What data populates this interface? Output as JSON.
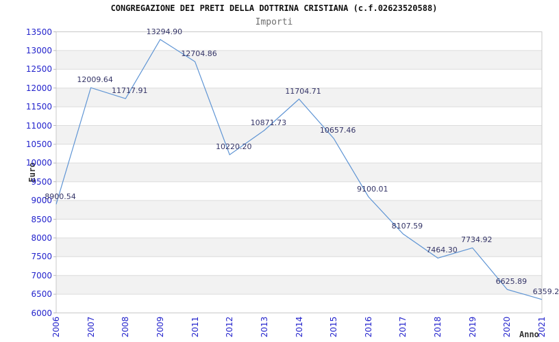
{
  "header": {
    "title": "CONGREGAZIONE DEI PRETI DELLA DOTTRINA CRISTIANA (c.f.02623520588)",
    "subtitle": "Importi"
  },
  "axes": {
    "y_title": "Euro",
    "x_title": "Anno"
  },
  "colors": {
    "line": "#5e94d4",
    "band": "#f2f2f2",
    "grid": "#dcdcdc",
    "border": "#c8c8c8",
    "tick_mark": "#bbbbbb",
    "tick_label": "#2222cc",
    "point_label": "#333366",
    "title": "#111111",
    "subtitle": "#6e6e6e",
    "axis_title": "#333333",
    "background": "#ffffff"
  },
  "chart_data": {
    "type": "line",
    "title": "CONGREGAZIONE DEI PRETI DELLA DOTTRINA CRISTIANA (c.f.02623520588)",
    "subtitle": "Importi",
    "xlabel": "Anno",
    "ylabel": "Euro",
    "ylim": [
      6000,
      13500
    ],
    "ytick_step": 500,
    "ytick_labels": [
      "6000",
      "6500",
      "7000",
      "7500",
      "8000",
      "8500",
      "9000",
      "9500",
      "10000",
      "10500",
      "11000",
      "11500",
      "12000",
      "12500",
      "13000",
      "13500"
    ],
    "grid": "horizontal gridlines with alternating gray bands",
    "legend": "none",
    "categories": [
      "2006",
      "2007",
      "2008",
      "2009",
      "2011",
      "2012",
      "2013",
      "2014",
      "2015",
      "2016",
      "2017",
      "2018",
      "2019",
      "2020",
      "2021"
    ],
    "series": [
      {
        "name": "Importi",
        "values": [
          8900.54,
          12009.64,
          11717.91,
          13294.9,
          12704.86,
          10220.2,
          10871.73,
          11704.71,
          10657.46,
          9100.01,
          8107.59,
          7464.3,
          7734.92,
          6625.89,
          6359.2
        ]
      }
    ],
    "point_labels": [
      "8900.54",
      "12009.64",
      "11717.91",
      "13294.90",
      "12704.86",
      "10220.20",
      "10871.73",
      "11704.71",
      "10657.46",
      "9100.01",
      "8107.59",
      "7464.30",
      "7734.92",
      "6625.89",
      "6359.2"
    ]
  }
}
